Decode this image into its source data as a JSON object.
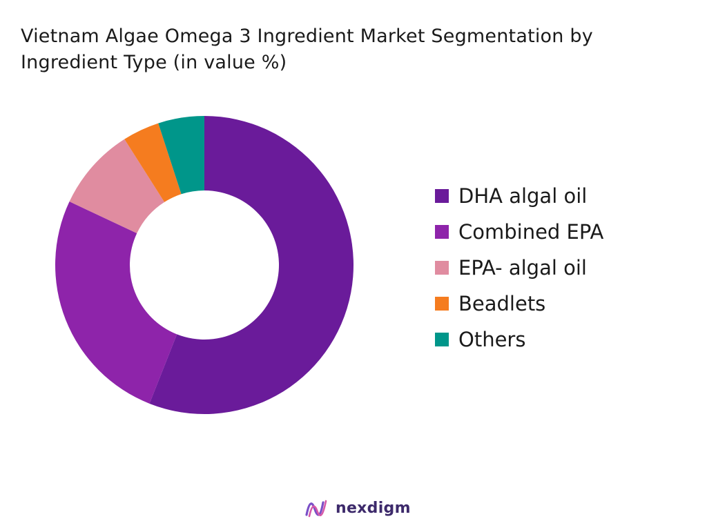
{
  "chart_data": {
    "type": "pie",
    "title": "Vietnam Algae Omega 3 Ingredient Market Segmentation by Ingredient Type (in value %)",
    "categories": [
      "DHA algal oil",
      "Combined EPA",
      "EPA- algal oil",
      "Beadlets",
      "Others"
    ],
    "values": [
      56,
      26,
      9,
      4,
      5
    ],
    "colors": [
      "#6a1b9a",
      "#8e24aa",
      "#e08ca0",
      "#f57c1f",
      "#00968a"
    ],
    "legend": "right",
    "donut": true
  },
  "brand": {
    "name": "nexdigm",
    "logo_icon": "nexdigm-logo-icon"
  }
}
